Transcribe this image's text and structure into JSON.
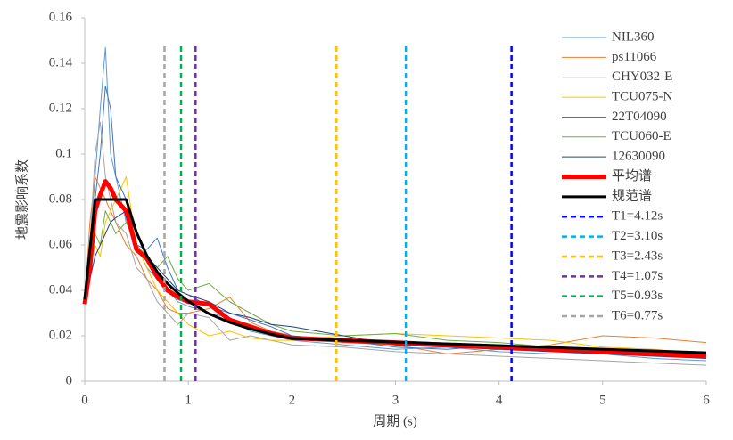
{
  "chart_data": {
    "type": "line",
    "x_label": "周期 (s)",
    "y_label": "地震影响系数",
    "xlim": [
      0,
      6
    ],
    "xticks": [
      0,
      1,
      2,
      3,
      4,
      5,
      6
    ],
    "ylim": [
      0,
      0.16
    ],
    "yticks": [
      0,
      0.02,
      0.04,
      0.06,
      0.08,
      0.1,
      0.12,
      0.14,
      0.16
    ],
    "x": [
      0,
      0.05,
      0.1,
      0.15,
      0.2,
      0.25,
      0.3,
      0.4,
      0.5,
      0.6,
      0.7,
      0.8,
      0.9,
      1.0,
      1.2,
      1.4,
      1.6,
      1.8,
      2.0,
      2.5,
      3,
      3.5,
      4,
      4.5,
      5,
      5.5,
      6
    ],
    "legend": "upper right",
    "series": [
      {
        "name": "NIL360",
        "color": "#5b9bd5",
        "line_width": 1,
        "values": [
          0.034,
          0.06,
          0.09,
          0.12,
          0.147,
          0.1,
          0.09,
          0.07,
          0.06,
          0.05,
          0.045,
          0.04,
          0.035,
          0.033,
          0.03,
          0.028,
          0.022,
          0.02,
          0.018,
          0.016,
          0.014,
          0.015,
          0.013,
          0.012,
          0.012,
          0.01,
          0.009
        ]
      },
      {
        "name": "ps11066",
        "color": "#ed7d31",
        "line_width": 1,
        "values": [
          0.034,
          0.07,
          0.09,
          0.085,
          0.08,
          0.075,
          0.07,
          0.06,
          0.055,
          0.045,
          0.04,
          0.032,
          0.03,
          0.03,
          0.032,
          0.037,
          0.026,
          0.022,
          0.02,
          0.017,
          0.016,
          0.012,
          0.014,
          0.016,
          0.02,
          0.019,
          0.017
        ]
      },
      {
        "name": "CHY032-E",
        "color": "#a5a5a5",
        "line_width": 1,
        "values": [
          0.034,
          0.06,
          0.1,
          0.114,
          0.09,
          0.08,
          0.07,
          0.065,
          0.05,
          0.045,
          0.035,
          0.03,
          0.025,
          0.03,
          0.028,
          0.018,
          0.02,
          0.018,
          0.016,
          0.015,
          0.013,
          0.012,
          0.011,
          0.01,
          0.009,
          0.008,
          0.007
        ]
      },
      {
        "name": "TCU075-N",
        "color": "#ffc000",
        "line_width": 1,
        "values": [
          0.034,
          0.05,
          0.06,
          0.055,
          0.07,
          0.075,
          0.08,
          0.09,
          0.06,
          0.05,
          0.04,
          0.035,
          0.03,
          0.025,
          0.02,
          0.022,
          0.019,
          0.018,
          0.018,
          0.02,
          0.021,
          0.02,
          0.019,
          0.018,
          0.015,
          0.014,
          0.012
        ]
      },
      {
        "name": "22T04090",
        "color": "#4472c4",
        "line_width": 1,
        "values": [
          0.034,
          0.06,
          0.08,
          0.1,
          0.13,
          0.12,
          0.09,
          0.08,
          0.06,
          0.058,
          0.063,
          0.05,
          0.04,
          0.038,
          0.033,
          0.03,
          0.027,
          0.024,
          0.02,
          0.018,
          0.015,
          0.014,
          0.016,
          0.015,
          0.013,
          0.012,
          0.011
        ]
      },
      {
        "name": "TCU060-E",
        "color": "#70ad47",
        "line_width": 1,
        "values": [
          0.034,
          0.05,
          0.065,
          0.06,
          0.075,
          0.07,
          0.065,
          0.07,
          0.06,
          0.055,
          0.05,
          0.055,
          0.045,
          0.04,
          0.043,
          0.035,
          0.03,
          0.025,
          0.022,
          0.02,
          0.021,
          0.018,
          0.017,
          0.015,
          0.014,
          0.013,
          0.012
        ]
      },
      {
        "name": "12630090",
        "color": "#264478",
        "line_width": 1,
        "values": [
          0.034,
          0.045,
          0.055,
          0.06,
          0.065,
          0.07,
          0.072,
          0.075,
          0.065,
          0.055,
          0.05,
          0.045,
          0.04,
          0.038,
          0.035,
          0.03,
          0.028,
          0.025,
          0.024,
          0.02,
          0.016,
          0.015,
          0.014,
          0.013,
          0.012,
          0.011,
          0.01
        ]
      },
      {
        "name": "平均谱",
        "color": "#ff0000",
        "line_width": 5,
        "values": [
          0.034,
          0.05,
          0.075,
          0.082,
          0.088,
          0.085,
          0.08,
          0.075,
          0.058,
          0.054,
          0.046,
          0.04,
          0.037,
          0.035,
          0.034,
          0.027,
          0.024,
          0.021,
          0.019,
          0.018,
          0.017,
          0.016,
          0.015,
          0.014,
          0.013,
          0.012,
          0.011
        ]
      },
      {
        "name": "规范谱",
        "color": "#000000",
        "line_width": 3,
        "x": [
          0,
          0.1,
          0.4,
          0.5,
          0.6,
          0.7,
          0.8,
          0.9,
          1.0,
          1.2,
          1.4,
          1.6,
          1.8,
          2.0,
          6
        ],
        "values": [
          0.036,
          0.08,
          0.08,
          0.0655,
          0.0553,
          0.0481,
          0.0429,
          0.0388,
          0.0352,
          0.0297,
          0.0259,
          0.023,
          0.0207,
          0.0188,
          0.0125
        ]
      },
      {
        "name": "T1=4.12s",
        "color": "#0000ff",
        "line_width": 2.5,
        "dashed": true,
        "x": [
          4.12,
          4.12
        ],
        "values": [
          0,
          0.148
        ]
      },
      {
        "name": "T2=3.10s",
        "color": "#00b0f0",
        "line_width": 2.5,
        "dashed": true,
        "x": [
          3.1,
          3.1
        ],
        "values": [
          0,
          0.148
        ]
      },
      {
        "name": "T3=2.43s",
        "color": "#ffc000",
        "line_width": 2.5,
        "dashed": true,
        "x": [
          2.43,
          2.43
        ],
        "values": [
          0,
          0.148
        ]
      },
      {
        "name": "T4=1.07s",
        "color": "#7030a0",
        "line_width": 2.5,
        "dashed": true,
        "x": [
          1.07,
          1.07
        ],
        "values": [
          0,
          0.148
        ]
      },
      {
        "name": "T5=0.93s",
        "color": "#00b050",
        "line_width": 2.5,
        "dashed": true,
        "x": [
          0.93,
          0.93
        ],
        "values": [
          0,
          0.148
        ]
      },
      {
        "name": "T6=0.77s",
        "color": "#a6a6a6",
        "line_width": 2.5,
        "dashed": true,
        "x": [
          0.77,
          0.77
        ],
        "values": [
          0,
          0.148
        ]
      }
    ]
  }
}
